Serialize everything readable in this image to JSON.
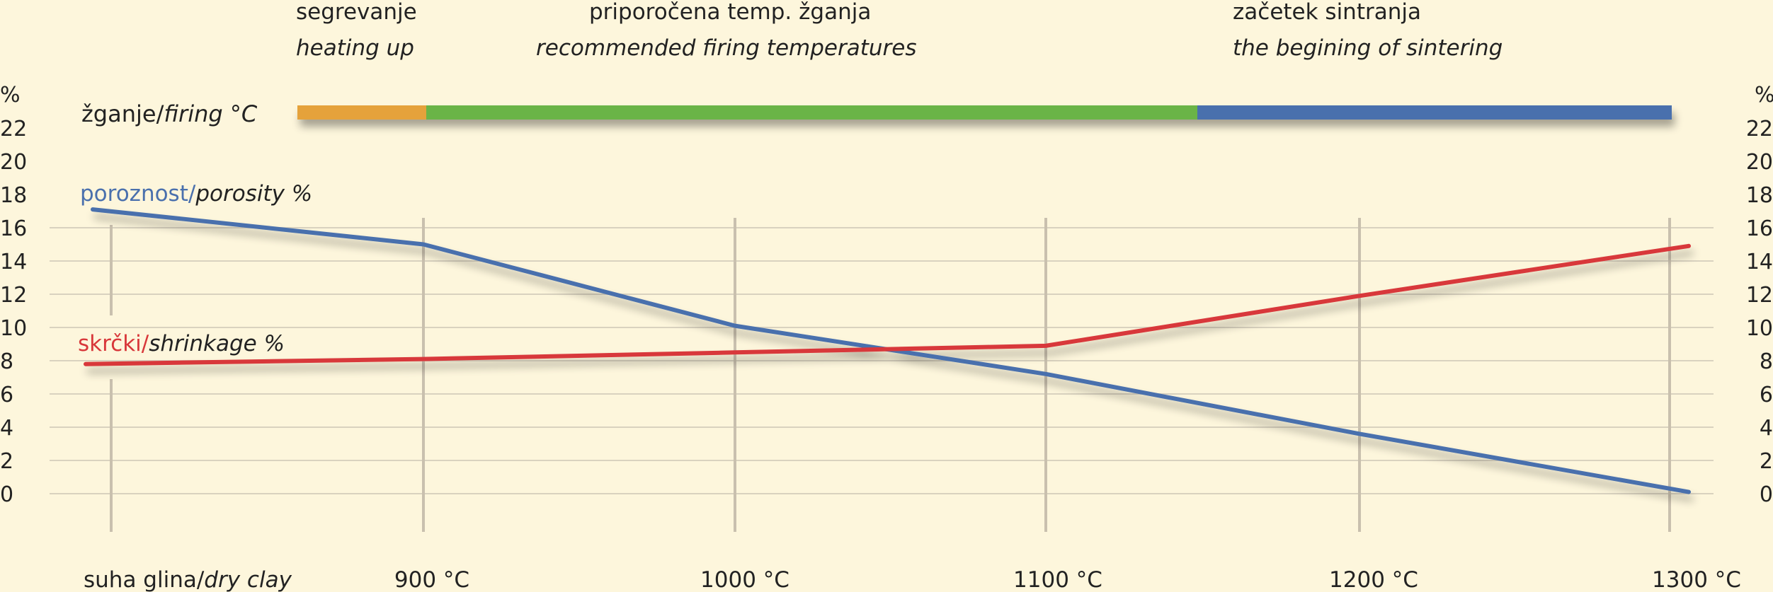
{
  "phases": [
    {
      "title": "segrevanje",
      "subtitle": "heating up",
      "color": "#e5a23b",
      "from": "",
      "to": "900"
    },
    {
      "title": "priporočena temp. žganja",
      "subtitle": "recommended firing temperatures",
      "color": "#6ab446",
      "from": "900",
      "to": "1150"
    },
    {
      "title": "začetek sintranja",
      "subtitle": "the begining of sintering",
      "color": "#4a70ad",
      "from": "1150",
      "to": "1300"
    }
  ],
  "firing_label": {
    "slo": "žganje/",
    "eng": "firing °C"
  },
  "chart_data": {
    "type": "line",
    "categories": [
      "suha glina/dry clay",
      "900 °C",
      "1000 °C",
      "1100 °C",
      "1200 °C",
      "1300 °C"
    ],
    "category_labels": [
      {
        "slo": "suha glina/",
        "eng": "dry clay"
      },
      {
        "slo": "900 °C",
        "eng": ""
      },
      {
        "slo": "1000 °C",
        "eng": ""
      },
      {
        "slo": "1100 °C",
        "eng": ""
      },
      {
        "slo": "1200 °C",
        "eng": ""
      },
      {
        "slo": "1300 °C",
        "eng": ""
      }
    ],
    "series": [
      {
        "name": "poroznost/porosity %",
        "label_slo": "poroznost/",
        "label_eng": "porosity %",
        "color": "#4a70ad",
        "values": [
          17.1,
          15.0,
          10.1,
          7.2,
          3.6,
          0.1
        ]
      },
      {
        "name": "skrčki/shrinkage %",
        "label_slo": "skrčki/",
        "label_eng": "shrinkage %",
        "color": "#d8373a",
        "values": [
          7.8,
          8.1,
          8.5,
          8.9,
          11.9,
          14.9
        ]
      }
    ],
    "y_unit": "%",
    "yticks": [
      22,
      20,
      18,
      16,
      14,
      12,
      10,
      8,
      6,
      4,
      2,
      0
    ],
    "ylim": [
      0,
      22
    ],
    "grid": true
  },
  "colors": {
    "background": "#fdf6dc",
    "grid": "#d9d2bf",
    "axis_guides": "#c9c0ae"
  }
}
